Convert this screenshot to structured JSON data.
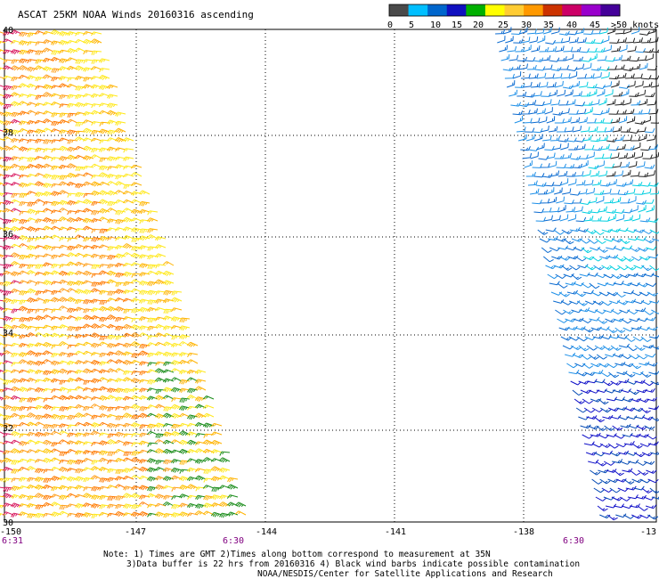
{
  "title": "ASCAT 25KM NOAA Winds 20160316 ascending",
  "legend": {
    "ticks": [
      "0",
      "5",
      "10",
      "15",
      "20",
      "25",
      "30",
      "35",
      "40",
      "45",
      ">50 knots"
    ],
    "colors": [
      "#4a4a4a",
      "#00bfff",
      "#0066cc",
      "#1010c0",
      "#00b000",
      "#ffff00",
      "#ffcc33",
      "#ff9900",
      "#cc3300",
      "#cc0066",
      "#9900cc",
      "#440099"
    ]
  },
  "lat_labels": [
    "40",
    "38",
    "36",
    "34",
    "32",
    "30"
  ],
  "lon_labels": [
    "-150",
    "-147",
    "-144",
    "-141",
    "-138",
    "-13"
  ],
  "time_labels": [
    "6:31",
    "6:30",
    "6:30"
  ],
  "notes": {
    "line1": "Note: 1) Times are GMT 2)Times along bottom correspond to measurement at 35N",
    "line2": "3)Data buffer is 22 hrs from 20160316 4) Black wind barbs indicate possible contamination",
    "line3": "NOAA/NESDIS/Center for Satellite Applications and Research"
  }
}
